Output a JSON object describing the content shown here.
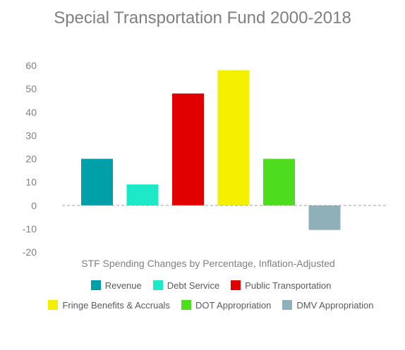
{
  "chart_data": {
    "type": "bar",
    "title": "Special Transportation Fund 2000-2018",
    "xlabel": "STF Spending Changes by Percentage, Inflation-Adjusted",
    "ylabel": "",
    "ylim": [
      -20,
      60
    ],
    "yticks": [
      60,
      50,
      40,
      30,
      20,
      10,
      0,
      -10,
      -20
    ],
    "grid": false,
    "zero_line": "dashed",
    "legend_position": "bottom",
    "categories": [
      "Revenue",
      "Debt Service",
      "Public Transportation",
      "Fringe Benefits & Accruals",
      "DOT Appropriation",
      "DMV Appropriation"
    ],
    "values": [
      20,
      9,
      48,
      58,
      20,
      -10.5
    ],
    "colors": [
      "#00a0a8",
      "#1de9c8",
      "#e00000",
      "#f5f000",
      "#4ddc1e",
      "#8fb0b8"
    ]
  }
}
